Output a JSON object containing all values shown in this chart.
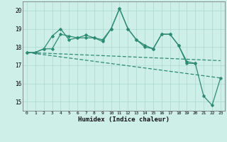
{
  "x": [
    0,
    1,
    2,
    3,
    4,
    5,
    6,
    7,
    8,
    9,
    10,
    11,
    12,
    13,
    14,
    15,
    16,
    17,
    18,
    19,
    20,
    21,
    22,
    23
  ],
  "line1": [
    17.7,
    17.7,
    17.9,
    17.9,
    18.7,
    18.6,
    18.5,
    18.65,
    18.5,
    18.3,
    19.0,
    20.1,
    19.0,
    18.4,
    18.1,
    17.9,
    18.7,
    18.7,
    18.1,
    17.1,
    17.1,
    null,
    null,
    null
  ],
  "line2": [
    17.7,
    17.7,
    17.9,
    18.6,
    19.0,
    18.4,
    18.5,
    18.5,
    18.5,
    18.4,
    19.0,
    20.1,
    19.0,
    18.4,
    18.0,
    17.9,
    18.7,
    18.7,
    18.1,
    17.2,
    17.1,
    15.3,
    14.8,
    16.3
  ],
  "line3_x": [
    0,
    23
  ],
  "line3_y": [
    17.7,
    17.25
  ],
  "line4_x": [
    0,
    23
  ],
  "line4_y": [
    17.7,
    16.3
  ],
  "color": "#2d8b74",
  "bg_color": "#ceeee8",
  "grid_color": "#aad8d0",
  "xlabel": "Humidex (Indice chaleur)",
  "ylim": [
    14.5,
    20.5
  ],
  "xlim": [
    -0.5,
    23.5
  ],
  "yticks": [
    15,
    16,
    17,
    18,
    19,
    20
  ],
  "xticks": [
    0,
    1,
    2,
    3,
    4,
    5,
    6,
    7,
    8,
    9,
    10,
    11,
    12,
    13,
    14,
    15,
    16,
    17,
    18,
    19,
    20,
    21,
    22,
    23
  ]
}
